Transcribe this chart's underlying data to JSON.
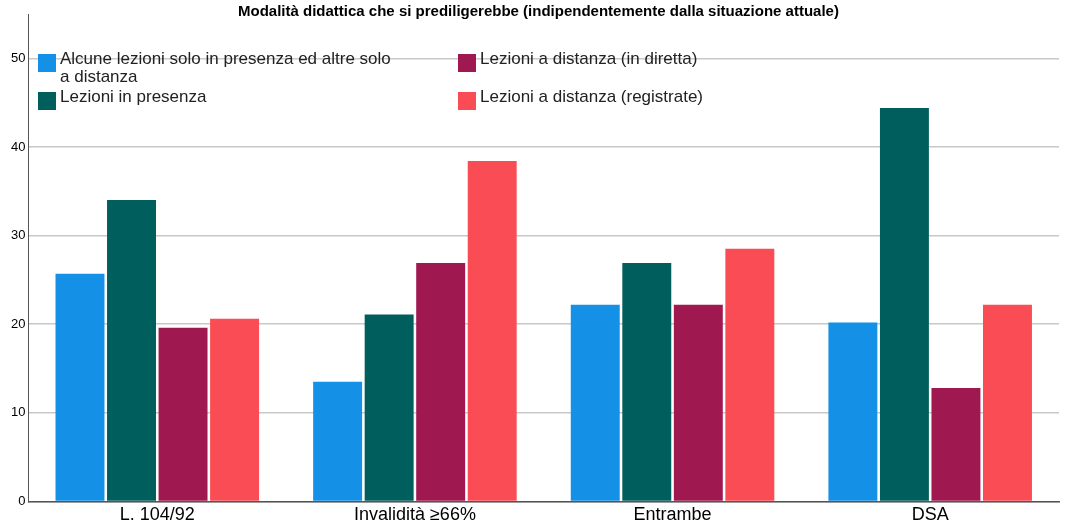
{
  "chart_data": {
    "type": "bar",
    "title": "Modalità didattica che si prediligerebbe (indipendentemente dalla situazione attuale)",
    "categories": [
      "L. 104/92",
      "Invalidità ≥66%",
      "Entrambe",
      "DSA"
    ],
    "series": [
      {
        "name": "Alcune lezioni solo in presenza ed altre solo a distanza",
        "color": "#1491e6",
        "values": [
          25.7,
          13.5,
          22.2,
          20.2
        ]
      },
      {
        "name": "Lezioni in presenza",
        "color": "#005e5c",
        "values": [
          34.0,
          21.1,
          26.9,
          44.4
        ]
      },
      {
        "name": "Lezioni a distanza (in diretta)",
        "color": "#a01850",
        "values": [
          19.6,
          26.9,
          22.2,
          12.8
        ]
      },
      {
        "name": "Lezioni a distanza (registrate)",
        "color": "#fa4c55",
        "values": [
          20.6,
          38.4,
          28.5,
          22.2
        ]
      }
    ],
    "ylim": [
      0,
      55
    ],
    "yticks": [
      0,
      10,
      20,
      30,
      40,
      50
    ],
    "grid": "y",
    "legend": "top left"
  }
}
